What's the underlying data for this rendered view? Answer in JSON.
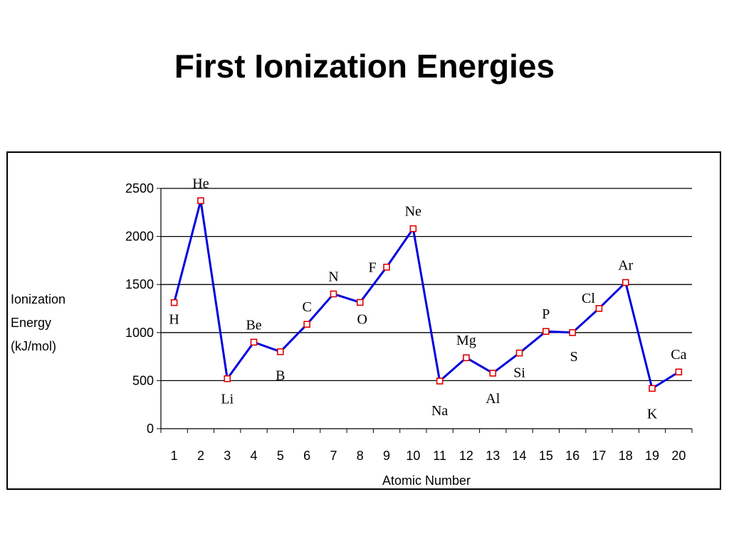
{
  "title": "First Ionization Energies",
  "chart_data": {
    "type": "line",
    "x": [
      1,
      2,
      3,
      4,
      5,
      6,
      7,
      8,
      9,
      10,
      11,
      12,
      13,
      14,
      15,
      16,
      17,
      18,
      19,
      20
    ],
    "series": [
      {
        "values": [
          1312,
          2372,
          520,
          900,
          801,
          1086,
          1402,
          1314,
          1681,
          2081,
          496,
          738,
          578,
          787,
          1012,
          1000,
          1251,
          1521,
          419,
          590
        ],
        "point_labels": [
          "H",
          "He",
          "Li",
          "Be",
          "B",
          "C",
          "N",
          "O",
          "F",
          "Ne",
          "Na",
          "Mg",
          "Al",
          "Si",
          "P",
          "S",
          "Cl",
          "Ar",
          "K",
          "Ca"
        ],
        "color": "#0000dd",
        "marker_color": "#dd0000"
      }
    ],
    "xlabel": "Atomic Number",
    "ylabel": [
      "Ionization",
      "Energy",
      "(kJ/mol)"
    ],
    "ylim": [
      0,
      2500
    ],
    "yticks": [
      0,
      500,
      1000,
      1500,
      2000,
      2500
    ],
    "grid": "horizontal",
    "legend": "none"
  }
}
